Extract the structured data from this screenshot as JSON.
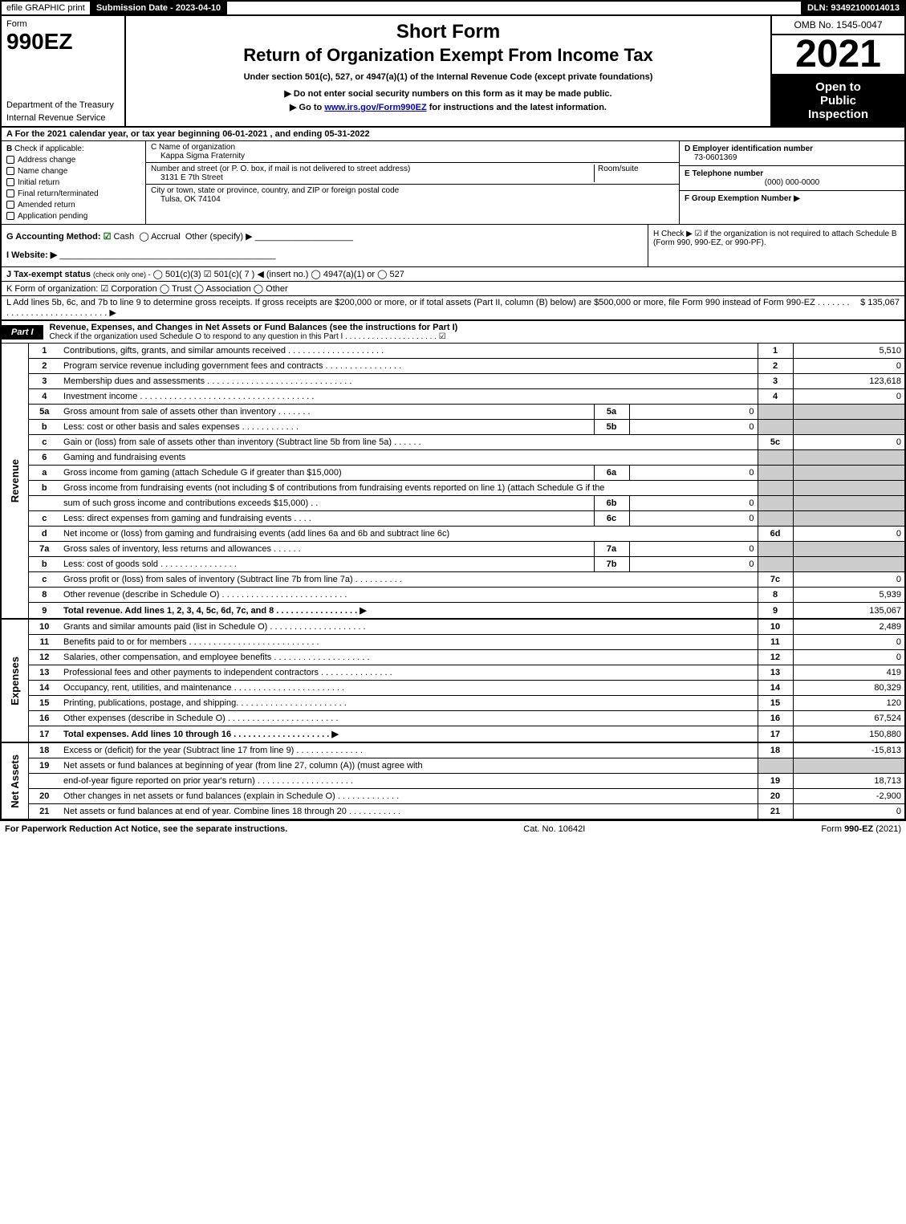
{
  "topbar": {
    "efile": "efile GRAPHIC print",
    "submission": "Submission Date - 2023-04-10",
    "dln": "DLN: 93492100014013"
  },
  "header": {
    "form_label": "Form",
    "form_number": "990EZ",
    "dept1": "Department of the Treasury",
    "dept2": "Internal Revenue Service",
    "title1": "Short Form",
    "title2": "Return of Organization Exempt From Income Tax",
    "subtitle": "Under section 501(c), 527, or 4947(a)(1) of the Internal Revenue Code (except private foundations)",
    "note1": "▶ Do not enter social security numbers on this form as it may be made public.",
    "note2_pre": "▶ Go to ",
    "note2_link": "www.irs.gov/Form990EZ",
    "note2_post": " for instructions and the latest information.",
    "omb": "OMB No. 1545-0047",
    "year": "2021",
    "inspect1": "Open to",
    "inspect2": "Public",
    "inspect3": "Inspection"
  },
  "line_a": "A  For the 2021 calendar year, or tax year beginning 06-01-2021 , and ending 05-31-2022",
  "section_b": {
    "label": "B",
    "title": "Check if applicable:",
    "opts": [
      "Address change",
      "Name change",
      "Initial return",
      "Final return/terminated",
      "Amended return",
      "Application pending"
    ]
  },
  "section_c": {
    "name_label": "C Name of organization",
    "name": "Kappa Sigma Fraternity",
    "street_label": "Number and street (or P. O. box, if mail is not delivered to street address)",
    "room_label": "Room/suite",
    "street": "3131 E 7th Street",
    "city_label": "City or town, state or province, country, and ZIP or foreign postal code",
    "city": "Tulsa, OK  74104"
  },
  "section_d": {
    "ein_label": "D Employer identification number",
    "ein": "73-0601369",
    "tel_label": "E Telephone number",
    "tel": "(000) 000-0000",
    "grp_label": "F Group Exemption Number  ▶"
  },
  "line_g": {
    "label": "G Accounting Method:",
    "cash": "Cash",
    "accrual": "Accrual",
    "other": "Other (specify) ▶"
  },
  "line_h": "H  Check ▶ ☑ if the organization is not required to attach Schedule B (Form 990, 990-EZ, or 990-PF).",
  "line_i": "I Website: ▶",
  "line_j": {
    "label": "J Tax-exempt status",
    "sub": "(check only one) -",
    "opts": "◯ 501(c)(3)  ☑ 501(c)( 7 ) ◀ (insert no.)  ◯ 4947(a)(1) or  ◯ 527"
  },
  "line_k": "K Form of organization:  ☑ Corporation  ◯ Trust  ◯ Association  ◯ Other",
  "line_l": {
    "text": "L Add lines 5b, 6c, and 7b to line 9 to determine gross receipts. If gross receipts are $200,000 or more, or if total assets (Part II, column (B) below) are $500,000 or more, file Form 990 instead of Form 990-EZ  .  .  .  .  .  .  .  .  .  .  .  .  .  .  .  .  .  .  .  .  .  .  .  .  .  .  .  .  ▶",
    "value": "$ 135,067"
  },
  "part1": {
    "label": "Part I",
    "title": "Revenue, Expenses, and Changes in Net Assets or Fund Balances (see the instructions for Part I)",
    "check": "Check if the organization used Schedule O to respond to any question in this Part I  .  .  .  .  .  .  .  .  .  .  .  .  .  .  .  .  .  .  .  .  .  ☑"
  },
  "side_labels": {
    "revenue": "Revenue",
    "expenses": "Expenses",
    "netassets": "Net Assets"
  },
  "revenue_lines": [
    {
      "n": "1",
      "desc": "Contributions, gifts, grants, and similar amounts received  .  .  .  .  .  .  .  .  .  .  .  .  .  .  .  .  .  .  .  .",
      "rn": "1",
      "rv": "5,510"
    },
    {
      "n": "2",
      "desc": "Program service revenue including government fees and contracts  .  .  .  .  .  .  .  .  .  .  .  .  .  .  .  .",
      "rn": "2",
      "rv": "0"
    },
    {
      "n": "3",
      "desc": "Membership dues and assessments  .  .  .  .  .  .  .  .  .  .  .  .  .  .  .  .  .  .  .  .  .  .  .  .  .  .  .  .  .  .",
      "rn": "3",
      "rv": "123,618"
    },
    {
      "n": "4",
      "desc": "Investment income  .  .  .  .  .  .  .  .  .  .  .  .  .  .  .  .  .  .  .  .  .  .  .  .  .  .  .  .  .  .  .  .  .  .  .  .",
      "rn": "4",
      "rv": "0"
    },
    {
      "n": "5a",
      "desc": "Gross amount from sale of assets other than inventory  .  .  .  .  .  .  .",
      "sn": "5a",
      "sv": "0",
      "grey_r": true
    },
    {
      "n": "b",
      "desc": "Less: cost or other basis and sales expenses  .  .  .  .  .  .  .  .  .  .  .  .",
      "sn": "5b",
      "sv": "0",
      "grey_r": true
    },
    {
      "n": "c",
      "desc": "Gain or (loss) from sale of assets other than inventory (Subtract line 5b from line 5a)  .  .  .  .  .  .",
      "rn": "5c",
      "rv": "0"
    },
    {
      "n": "6",
      "desc": "Gaming and fundraising events",
      "grey_r": true
    },
    {
      "n": "a",
      "desc": "Gross income from gaming (attach Schedule G if greater than $15,000)",
      "sn": "6a",
      "sv": "0",
      "grey_r": true
    },
    {
      "n": "b",
      "desc": "Gross income from fundraising events (not including $                    of contributions from fundraising events reported on line 1) (attach Schedule G if the",
      "grey_r": true,
      "nosub": true
    },
    {
      "n": "",
      "desc": "sum of such gross income and contributions exceeds $15,000)   .  .",
      "sn": "6b",
      "sv": "0",
      "grey_r": true
    },
    {
      "n": "c",
      "desc": "Less: direct expenses from gaming and fundraising events   .  .  .  .",
      "sn": "6c",
      "sv": "0",
      "grey_r": true
    },
    {
      "n": "d",
      "desc": "Net income or (loss) from gaming and fundraising events (add lines 6a and 6b and subtract line 6c)",
      "rn": "6d",
      "rv": "0"
    },
    {
      "n": "7a",
      "desc": "Gross sales of inventory, less returns and allowances  .  .  .  .  .  .",
      "sn": "7a",
      "sv": "0",
      "grey_r": true
    },
    {
      "n": "b",
      "desc": "Less: cost of goods sold   .  .  .  .  .  .  .  .  .  .  .  .  .  .  .  .",
      "sn": "7b",
      "sv": "0",
      "grey_r": true
    },
    {
      "n": "c",
      "desc": "Gross profit or (loss) from sales of inventory (Subtract line 7b from line 7a)  .  .  .  .  .  .  .  .  .  .",
      "rn": "7c",
      "rv": "0"
    },
    {
      "n": "8",
      "desc": "Other revenue (describe in Schedule O)  .  .  .  .  .  .  .  .  .  .  .  .  .  .  .  .  .  .  .  .  .  .  .  .  .  .",
      "rn": "8",
      "rv": "5,939"
    },
    {
      "n": "9",
      "desc": "Total revenue. Add lines 1, 2, 3, 4, 5c, 6d, 7c, and 8  .  .  .  .  .  .  .  .  .  .  .  .  .  .  .  .  .              ▶",
      "rn": "9",
      "rv": "135,067",
      "bold": true
    }
  ],
  "expense_lines": [
    {
      "n": "10",
      "desc": "Grants and similar amounts paid (list in Schedule O)  .  .  .  .  .  .  .  .  .  .  .  .  .  .  .  .  .  .  .  .",
      "rn": "10",
      "rv": "2,489"
    },
    {
      "n": "11",
      "desc": "Benefits paid to or for members   .  .  .  .  .  .  .  .  .  .  .  .  .  .  .  .  .  .  .  .  .  .  .  .  .  .  .",
      "rn": "11",
      "rv": "0"
    },
    {
      "n": "12",
      "desc": "Salaries, other compensation, and employee benefits  .  .  .  .  .  .  .  .  .  .  .  .  .  .  .  .  .  .  .  .",
      "rn": "12",
      "rv": "0"
    },
    {
      "n": "13",
      "desc": "Professional fees and other payments to independent contractors  .  .  .  .  .  .  .  .  .  .  .  .  .  .  .",
      "rn": "13",
      "rv": "419"
    },
    {
      "n": "14",
      "desc": "Occupancy, rent, utilities, and maintenance  .  .  .  .  .  .  .  .  .  .  .  .  .  .  .  .  .  .  .  .  .  .  .",
      "rn": "14",
      "rv": "80,329"
    },
    {
      "n": "15",
      "desc": "Printing, publications, postage, and shipping.  .  .  .  .  .  .  .  .  .  .  .  .  .  .  .  .  .  .  .  .  .  .",
      "rn": "15",
      "rv": "120"
    },
    {
      "n": "16",
      "desc": "Other expenses (describe in Schedule O)   .  .  .  .  .  .  .  .  .  .  .  .  .  .  .  .  .  .  .  .  .  .  .",
      "rn": "16",
      "rv": "67,524"
    },
    {
      "n": "17",
      "desc": "Total expenses. Add lines 10 through 16   .  .  .  .  .  .  .  .  .  .  .  .  .  .  .  .  .  .  .  .       ▶",
      "rn": "17",
      "rv": "150,880",
      "bold": true
    }
  ],
  "netasset_lines": [
    {
      "n": "18",
      "desc": "Excess or (deficit) for the year (Subtract line 17 from line 9)   .  .  .  .  .  .  .  .  .  .  .  .  .  .",
      "rn": "18",
      "rv": "-15,813"
    },
    {
      "n": "19",
      "desc": "Net assets or fund balances at beginning of year (from line 27, column (A)) (must agree with",
      "grey_r": true
    },
    {
      "n": "",
      "desc": "end-of-year figure reported on prior year's return)  .  .  .  .  .  .  .  .  .  .  .  .  .  .  .  .  .  .  .  .",
      "rn": "19",
      "rv": "18,713"
    },
    {
      "n": "20",
      "desc": "Other changes in net assets or fund balances (explain in Schedule O)  .  .  .  .  .  .  .  .  .  .  .  .  .",
      "rn": "20",
      "rv": "-2,900"
    },
    {
      "n": "21",
      "desc": "Net assets or fund balances at end of year. Combine lines 18 through 20  .  .  .  .  .  .  .  .  .  .  .",
      "rn": "21",
      "rv": "0"
    }
  ],
  "footer": {
    "left": "For Paperwork Reduction Act Notice, see the separate instructions.",
    "center": "Cat. No. 10642I",
    "right_pre": "Form ",
    "right_bold": "990-EZ",
    "right_post": " (2021)"
  }
}
